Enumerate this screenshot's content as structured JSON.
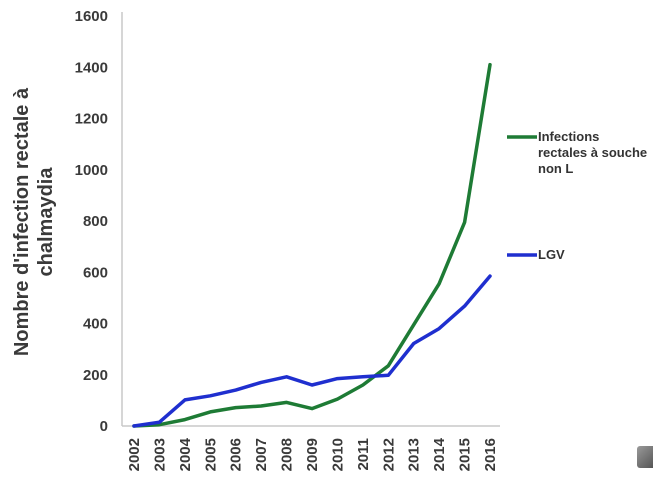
{
  "chart_data": {
    "type": "line",
    "title": "",
    "xlabel": "",
    "ylabel": "Nombre d'infection rectale à chalmaydia",
    "ylabel_lines": [
      "Nombre d'infection rectale à",
      "chalmaydia"
    ],
    "x": [
      "2002",
      "2003",
      "2004",
      "2005",
      "2006",
      "2007",
      "2008",
      "2009",
      "2010",
      "2011",
      "2012",
      "2013",
      "2014",
      "2015",
      "2016"
    ],
    "ylim": [
      0,
      1600
    ],
    "yticks": [
      0,
      200,
      400,
      600,
      800,
      1000,
      1200,
      1400,
      1600
    ],
    "grid": false,
    "legend_position": "right",
    "series": [
      {
        "name": "Infections rectales à souche non L",
        "legend_lines": [
          "Infections",
          "rectales à souche",
          "non L"
        ],
        "color": "#1e7b35",
        "values": [
          0,
          5,
          25,
          55,
          72,
          78,
          92,
          68,
          105,
          160,
          235,
          395,
          555,
          795,
          1410
        ]
      },
      {
        "name": "LGV",
        "legend_lines": [
          "LGV"
        ],
        "color": "#1f2fcf",
        "values": [
          0,
          15,
          102,
          118,
          140,
          170,
          192,
          160,
          185,
          192,
          198,
          322,
          380,
          468,
          585
        ]
      }
    ]
  }
}
